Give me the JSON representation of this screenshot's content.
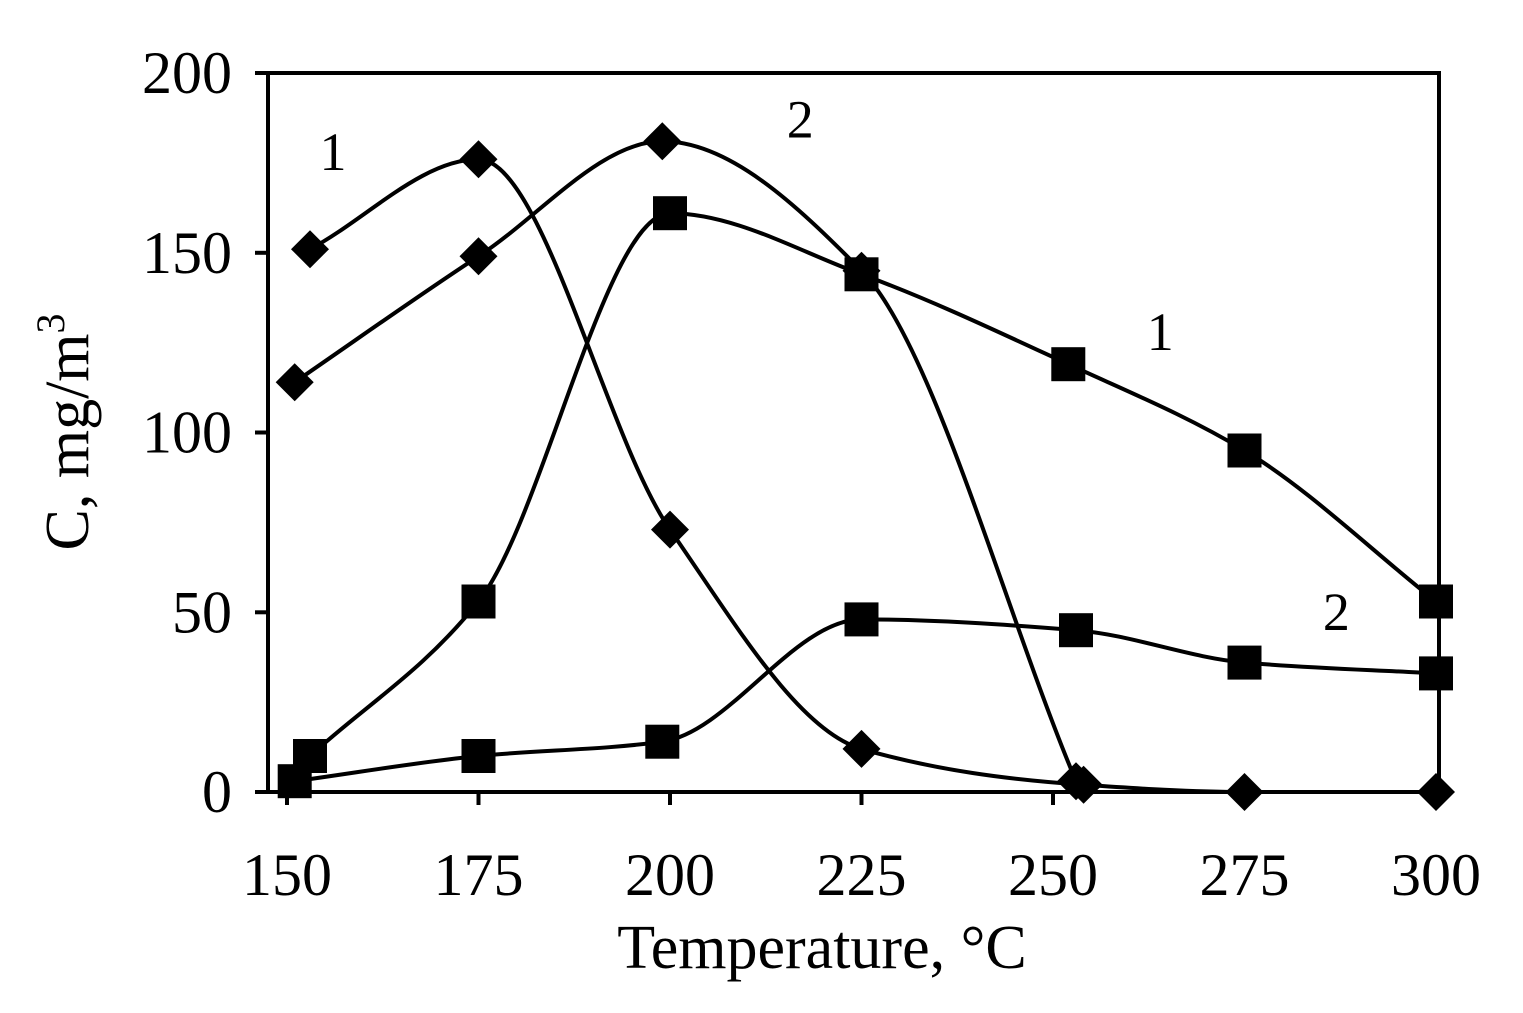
{
  "chart_data": {
    "type": "line",
    "xlabel": "Temperature, °C",
    "ylabel": "C, mg/m3",
    "ylabel_main": "C, mg/m",
    "ylabel_sup": "3",
    "xlim": [
      150,
      300
    ],
    "ylim": [
      0,
      200
    ],
    "x_ticks": [
      "150",
      "175",
      "200",
      "225",
      "250",
      "275",
      "300"
    ],
    "y_ticks": [
      "0",
      "50",
      "100",
      "150",
      "200"
    ],
    "grid": false,
    "legend": "none",
    "series": [
      {
        "marker": "diamond",
        "points": [
          [
            153,
            151
          ],
          [
            175,
            176
          ],
          [
            200,
            73
          ],
          [
            225,
            12
          ],
          [
            254,
            2
          ],
          [
            275,
            0
          ],
          [
            300,
            0
          ]
        ]
      },
      {
        "marker": "diamond",
        "points": [
          [
            151,
            114
          ],
          [
            175,
            149
          ],
          [
            199,
            181
          ],
          [
            225,
            145
          ],
          [
            253,
            3
          ]
        ]
      },
      {
        "marker": "square",
        "points": [
          [
            151,
            3
          ],
          [
            175,
            10
          ],
          [
            199,
            14
          ],
          [
            225,
            48
          ],
          [
            253,
            45
          ],
          [
            275,
            36
          ],
          [
            300,
            33
          ]
        ]
      },
      {
        "marker": "square",
        "points": [
          [
            153,
            10
          ],
          [
            175,
            53
          ],
          [
            200,
            161
          ],
          [
            225,
            144
          ],
          [
            252,
            119
          ],
          [
            275,
            95
          ],
          [
            300,
            53
          ]
        ]
      }
    ],
    "annotations": [
      {
        "text": "1",
        "x": 156,
        "y": 173
      },
      {
        "text": "2",
        "x": 217,
        "y": 182
      },
      {
        "text": "1",
        "x": 264,
        "y": 123
      },
      {
        "text": "2",
        "x": 287,
        "y": 45
      }
    ]
  }
}
